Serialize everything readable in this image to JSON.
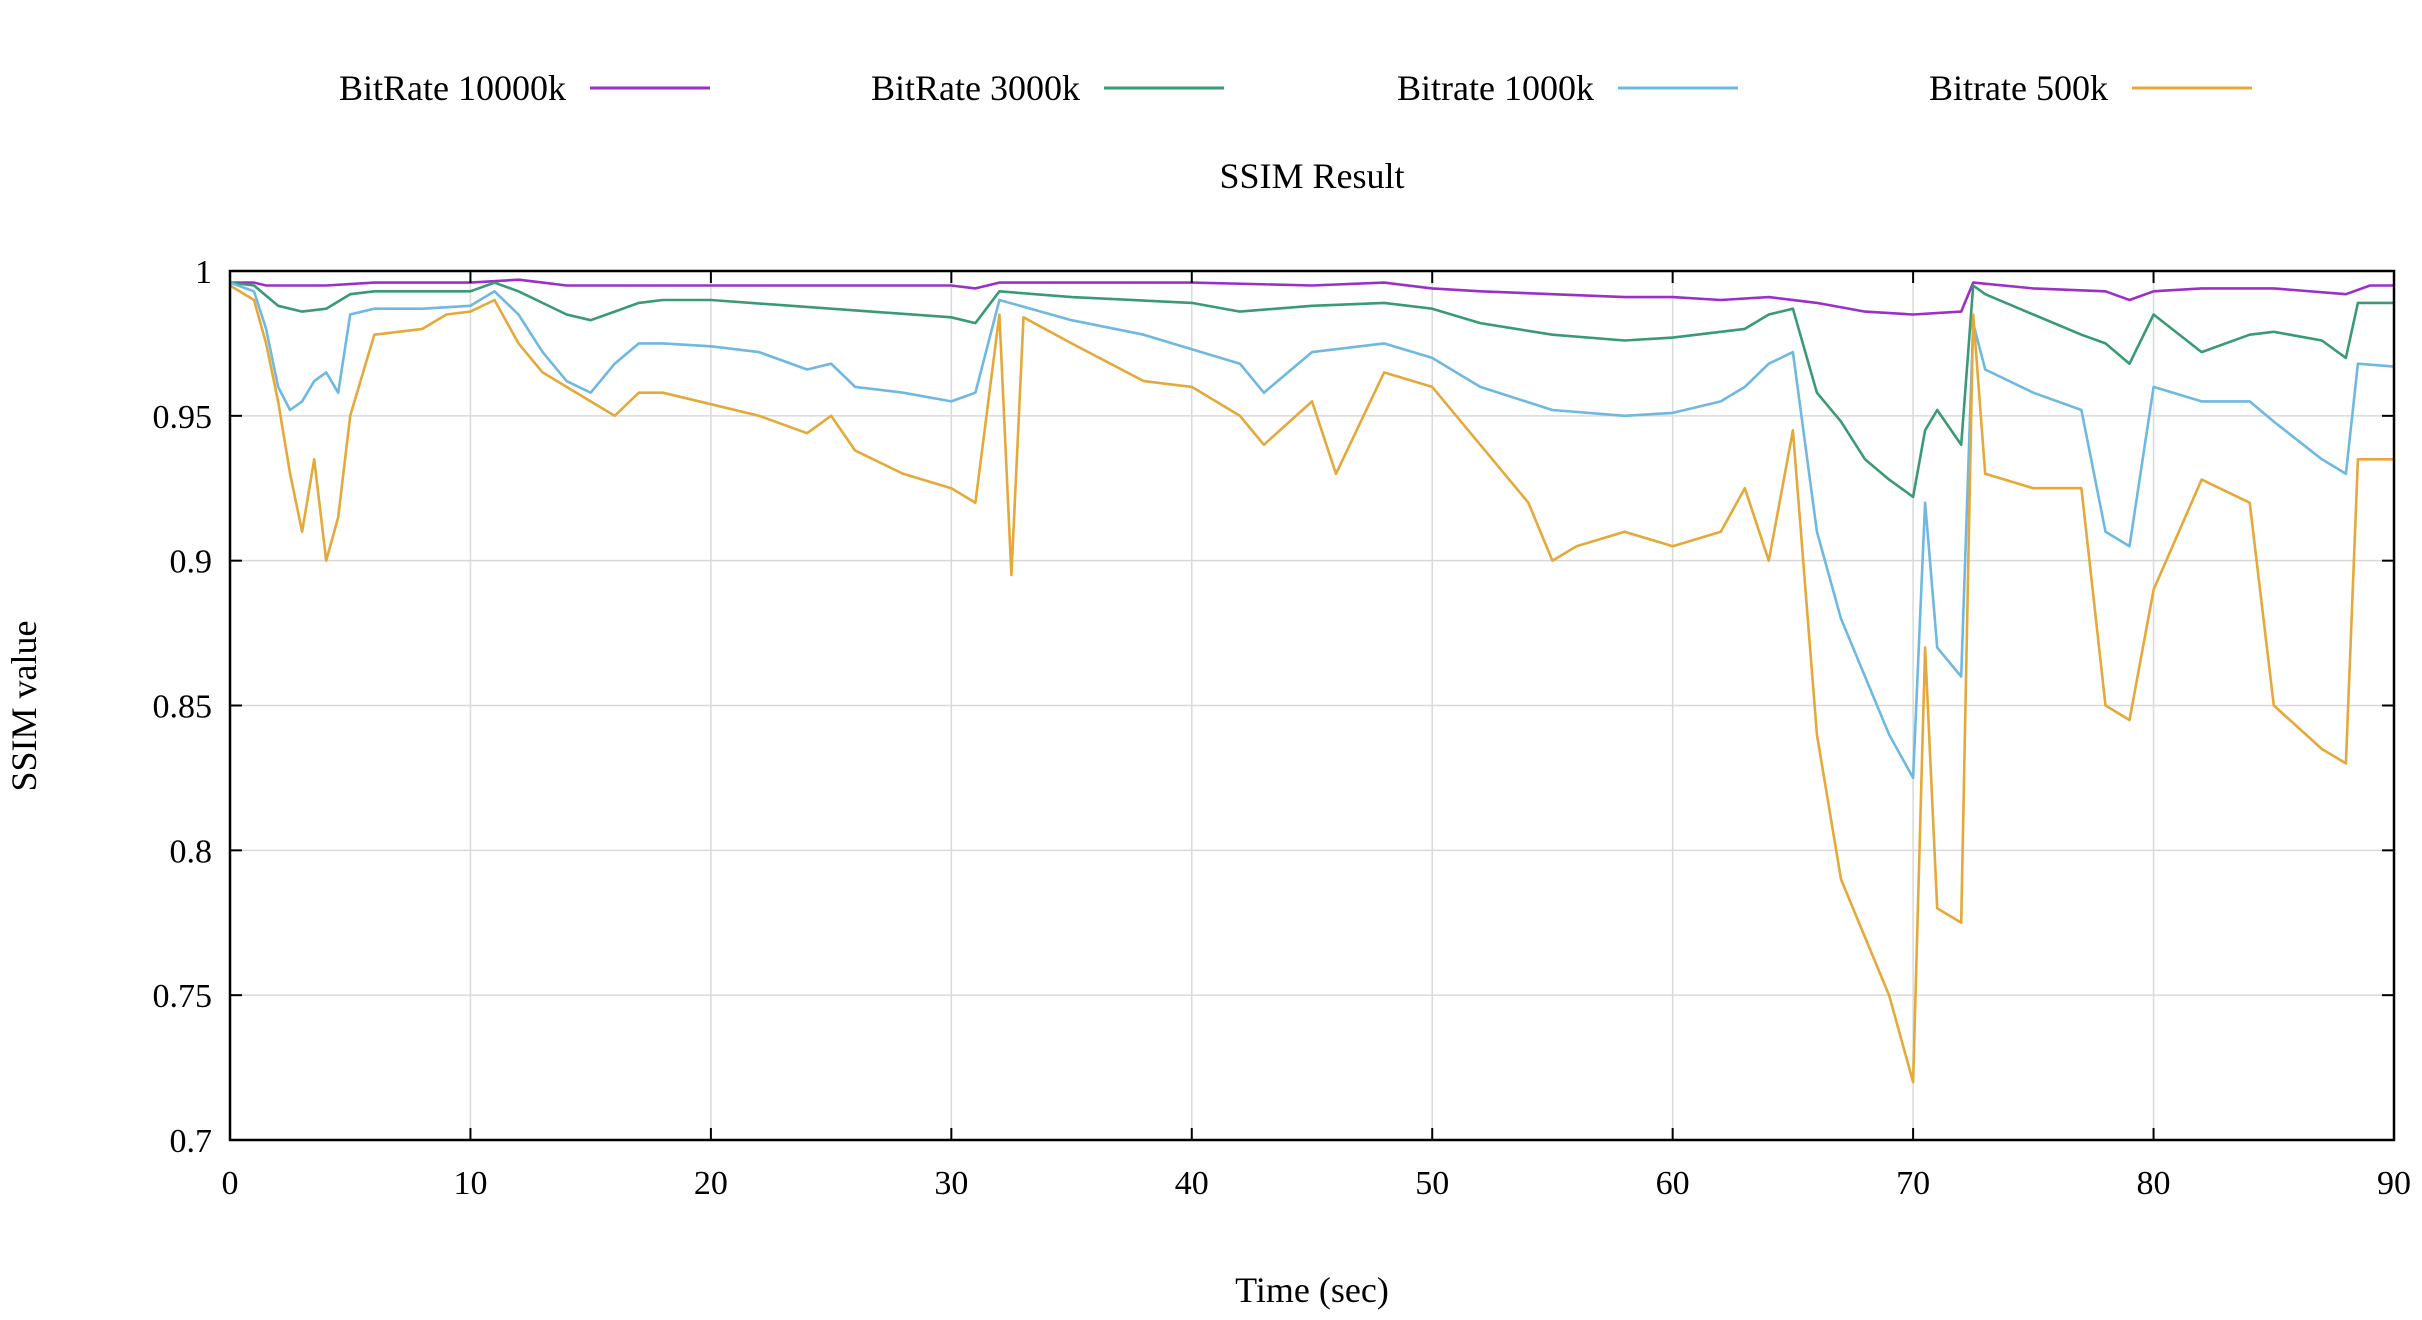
{
  "chart_data": {
    "type": "line",
    "title": "SSIM Result",
    "xlabel": "Time (sec)",
    "ylabel": "SSIM value",
    "xlim": [
      0,
      90
    ],
    "ylim": [
      0.7,
      1.0
    ],
    "xticks": [
      0,
      10,
      20,
      30,
      40,
      50,
      60,
      70,
      80,
      90
    ],
    "xtick_labels": [
      "0",
      "10",
      "20",
      "30",
      "40",
      "50",
      "60",
      "70",
      "80",
      "90"
    ],
    "yticks": [
      0.7,
      0.75,
      0.8,
      0.85,
      0.9,
      0.95,
      1.0
    ],
    "ytick_labels": [
      "0.7",
      "0.75",
      "0.8",
      "0.85",
      "0.9",
      "0.95",
      "1"
    ],
    "grid": true,
    "legend_position": "top",
    "series": [
      {
        "name": "BitRate 10000k",
        "color": "#9b30c8",
        "x": [
          0,
          1,
          1.5,
          2,
          4,
          6,
          8,
          10,
          12,
          13,
          14,
          16,
          18,
          20,
          25,
          30,
          31,
          32,
          35,
          40,
          45,
          48,
          50,
          52,
          55,
          58,
          60,
          62,
          64,
          66,
          68,
          70,
          72,
          72.5,
          75,
          78,
          79,
          80,
          82,
          85,
          88,
          89,
          90
        ],
        "values": [
          0.996,
          0.996,
          0.995,
          0.995,
          0.995,
          0.996,
          0.996,
          0.996,
          0.997,
          0.996,
          0.995,
          0.995,
          0.995,
          0.995,
          0.995,
          0.995,
          0.994,
          0.996,
          0.996,
          0.996,
          0.995,
          0.996,
          0.994,
          0.993,
          0.992,
          0.991,
          0.991,
          0.99,
          0.991,
          0.989,
          0.986,
          0.985,
          0.986,
          0.996,
          0.994,
          0.993,
          0.99,
          0.993,
          0.994,
          0.994,
          0.992,
          0.995,
          0.995
        ]
      },
      {
        "name": "BitRate 3000k",
        "color": "#3a9a74",
        "x": [
          0,
          1,
          2,
          3,
          4,
          5,
          6,
          8,
          10,
          11,
          12,
          14,
          15,
          16,
          17,
          18,
          20,
          25,
          30,
          31,
          32,
          35,
          40,
          42,
          45,
          48,
          50,
          52,
          55,
          58,
          60,
          62,
          63,
          64,
          65,
          66,
          67,
          68,
          69,
          70,
          70.5,
          71,
          72,
          72.5,
          73,
          75,
          77,
          78,
          79,
          80,
          82,
          84,
          85,
          87,
          88,
          88.5,
          90
        ],
        "values": [
          0.996,
          0.995,
          0.988,
          0.986,
          0.987,
          0.992,
          0.993,
          0.993,
          0.993,
          0.996,
          0.993,
          0.985,
          0.983,
          0.986,
          0.989,
          0.99,
          0.99,
          0.987,
          0.984,
          0.982,
          0.993,
          0.991,
          0.989,
          0.986,
          0.988,
          0.989,
          0.987,
          0.982,
          0.978,
          0.976,
          0.977,
          0.979,
          0.98,
          0.985,
          0.987,
          0.958,
          0.948,
          0.935,
          0.928,
          0.922,
          0.945,
          0.952,
          0.94,
          0.995,
          0.992,
          0.985,
          0.978,
          0.975,
          0.968,
          0.985,
          0.972,
          0.978,
          0.979,
          0.976,
          0.97,
          0.989,
          0.989
        ]
      },
      {
        "name": "Bitrate 1000k",
        "color": "#6fb8e0",
        "x": [
          0,
          1,
          1.5,
          2,
          2.5,
          3,
          3.5,
          4,
          4.5,
          5,
          6,
          8,
          10,
          11,
          12,
          13,
          14,
          15,
          16,
          17,
          18,
          20,
          22,
          24,
          25,
          26,
          28,
          30,
          31,
          32,
          35,
          38,
          40,
          42,
          43,
          45,
          48,
          50,
          52,
          55,
          58,
          60,
          62,
          63,
          64,
          65,
          66,
          67,
          68,
          69,
          70,
          70.5,
          71,
          72,
          72.5,
          73,
          75,
          77,
          78,
          79,
          80,
          82,
          84,
          85,
          87,
          88,
          88.5,
          90
        ],
        "values": [
          0.996,
          0.993,
          0.98,
          0.96,
          0.952,
          0.955,
          0.962,
          0.965,
          0.958,
          0.985,
          0.987,
          0.987,
          0.988,
          0.993,
          0.985,
          0.972,
          0.962,
          0.958,
          0.968,
          0.975,
          0.975,
          0.974,
          0.972,
          0.966,
          0.968,
          0.96,
          0.958,
          0.955,
          0.958,
          0.99,
          0.983,
          0.978,
          0.973,
          0.968,
          0.958,
          0.972,
          0.975,
          0.97,
          0.96,
          0.952,
          0.95,
          0.951,
          0.955,
          0.96,
          0.968,
          0.972,
          0.91,
          0.88,
          0.86,
          0.84,
          0.825,
          0.92,
          0.87,
          0.86,
          0.982,
          0.966,
          0.958,
          0.952,
          0.91,
          0.905,
          0.96,
          0.955,
          0.955,
          0.948,
          0.935,
          0.93,
          0.968,
          0.967
        ]
      },
      {
        "name": "Bitrate 500k",
        "color": "#e4a93a",
        "x": [
          0,
          1,
          1.5,
          2,
          2.5,
          3,
          3.5,
          4,
          4.5,
          5,
          6,
          8,
          9,
          10,
          11,
          12,
          13,
          14,
          15,
          16,
          17,
          18,
          20,
          22,
          24,
          25,
          26,
          28,
          30,
          31,
          32,
          32.5,
          33,
          35,
          38,
          40,
          42,
          43,
          45,
          46,
          48,
          50,
          52,
          54,
          55,
          56,
          58,
          60,
          62,
          63,
          64,
          65,
          66,
          67,
          68,
          69,
          70,
          70.5,
          71,
          72,
          72.5,
          73,
          75,
          77,
          78,
          79,
          80,
          82,
          84,
          85,
          87,
          88,
          88.5,
          90
        ],
        "values": [
          0.995,
          0.99,
          0.975,
          0.955,
          0.93,
          0.91,
          0.935,
          0.9,
          0.915,
          0.95,
          0.978,
          0.98,
          0.985,
          0.986,
          0.99,
          0.975,
          0.965,
          0.96,
          0.955,
          0.95,
          0.958,
          0.958,
          0.954,
          0.95,
          0.944,
          0.95,
          0.938,
          0.93,
          0.925,
          0.92,
          0.985,
          0.895,
          0.984,
          0.975,
          0.962,
          0.96,
          0.95,
          0.94,
          0.955,
          0.93,
          0.965,
          0.96,
          0.94,
          0.92,
          0.9,
          0.905,
          0.91,
          0.905,
          0.91,
          0.925,
          0.9,
          0.945,
          0.84,
          0.79,
          0.77,
          0.75,
          0.72,
          0.87,
          0.78,
          0.775,
          0.985,
          0.93,
          0.925,
          0.925,
          0.85,
          0.845,
          0.89,
          0.928,
          0.92,
          0.85,
          0.835,
          0.83,
          0.935,
          0.935
        ]
      }
    ]
  }
}
